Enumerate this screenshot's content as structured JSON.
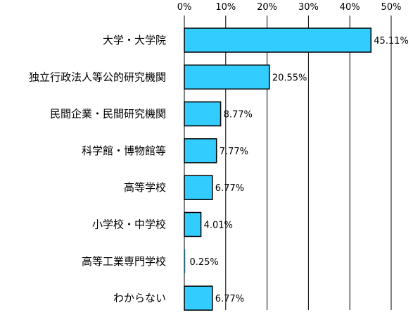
{
  "chart_data": {
    "type": "bar",
    "orientation": "horizontal",
    "categories": [
      "大学・大学院",
      "独立行政法人等公的研究機関",
      "民間企業・民間研究機関",
      "科学館・博物館等",
      "高等学校",
      "小学校・中学校",
      "高等工業専門学校",
      "わからない"
    ],
    "values": [
      45.11,
      20.55,
      8.77,
      7.77,
      6.77,
      4.01,
      0.25,
      6.77
    ],
    "value_labels": [
      "45.11%",
      "20.55%",
      "8.77%",
      "7.77%",
      "6.77%",
      "4.01%",
      "0.25%",
      "6.77%"
    ],
    "xlim": [
      0,
      50
    ],
    "x_ticks": [
      0,
      10,
      20,
      30,
      40,
      50
    ],
    "x_tick_labels": [
      "0%",
      "10%",
      "20%",
      "30%",
      "40%",
      "50%"
    ],
    "x_axis_position": "top",
    "grid": "vertical",
    "legend": "none",
    "bar_color": "#33ccff",
    "bar_edge_color": "#000000",
    "grid_color": "#000000"
  }
}
